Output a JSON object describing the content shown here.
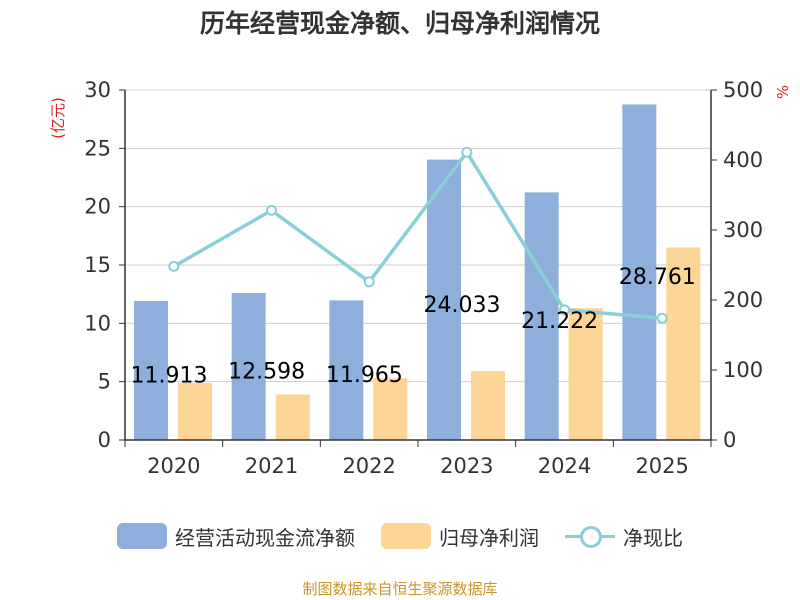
{
  "chart_data": {
    "type": "bar+line",
    "title": "历年经营现金净额、归母净利润情况",
    "y_left_label": "(亿元)",
    "y_right_label": "%",
    "categories": [
      "2020",
      "2021",
      "2022",
      "2023",
      "2024",
      "2025"
    ],
    "ylim_left": [
      0,
      30
    ],
    "yticks_left": [
      "0",
      "5",
      "10",
      "15",
      "20",
      "25",
      "30"
    ],
    "ylim_right": [
      0,
      500
    ],
    "yticks_right": [
      "0",
      "100",
      "200",
      "300",
      "400",
      "500"
    ],
    "grid": true,
    "legend_position": "bottom",
    "series": [
      {
        "name": "经营活动现金流净额",
        "type": "bar",
        "axis": "left",
        "color": "#8eaedc",
        "values": [
          11.913,
          12.598,
          11.965,
          24.033,
          21.222,
          28.761
        ],
        "labels": [
          "11.913",
          "12.598",
          "11.965",
          "24.033",
          "21.222",
          "28.761"
        ]
      },
      {
        "name": "归母净利润",
        "type": "bar",
        "axis": "left",
        "color": "#fdd597",
        "values": [
          4.9,
          3.9,
          5.3,
          5.9,
          11.3,
          16.5
        ]
      },
      {
        "name": "净现比",
        "type": "line",
        "axis": "right",
        "color": "#88d0d6",
        "values": [
          248,
          328,
          226,
          411,
          186,
          174
        ]
      }
    ]
  },
  "source": "制图数据来自恒生聚源数据库"
}
